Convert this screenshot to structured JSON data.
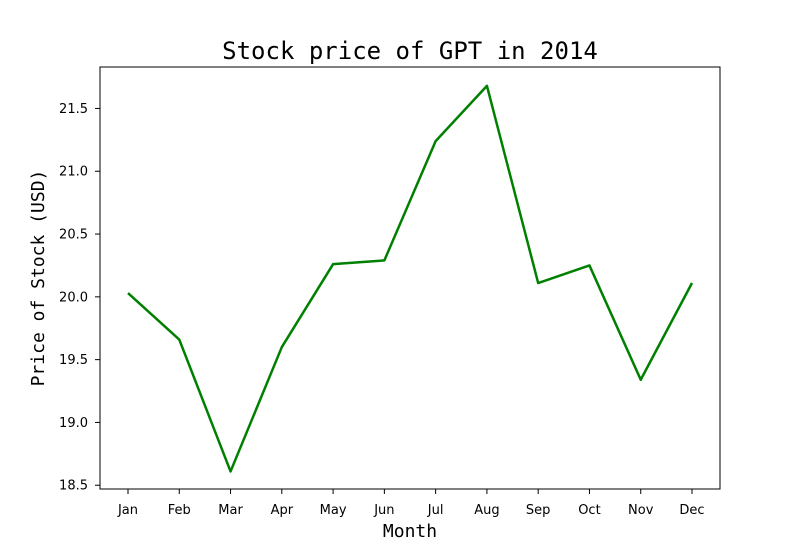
{
  "chart_data": {
    "type": "line",
    "title": "Stock price of GPT in 2014",
    "xlabel": "Month",
    "ylabel": "Price of Stock (USD)",
    "categories": [
      "Jan",
      "Feb",
      "Mar",
      "Apr",
      "May",
      "Jun",
      "Jul",
      "Aug",
      "Sep",
      "Oct",
      "Nov",
      "Dec"
    ],
    "series": [
      {
        "values": [
          20.03,
          19.66,
          18.61,
          19.6,
          20.26,
          20.29,
          21.24,
          21.68,
          20.11,
          20.25,
          19.34,
          20.11
        ],
        "color": "#008000"
      }
    ],
    "yticks": [
      "18.5",
      "19.0",
      "19.5",
      "20.0",
      "20.5",
      "21.0",
      "21.5"
    ],
    "ylim": [
      18.47,
      21.83
    ],
    "grid": false,
    "legend": "none"
  }
}
